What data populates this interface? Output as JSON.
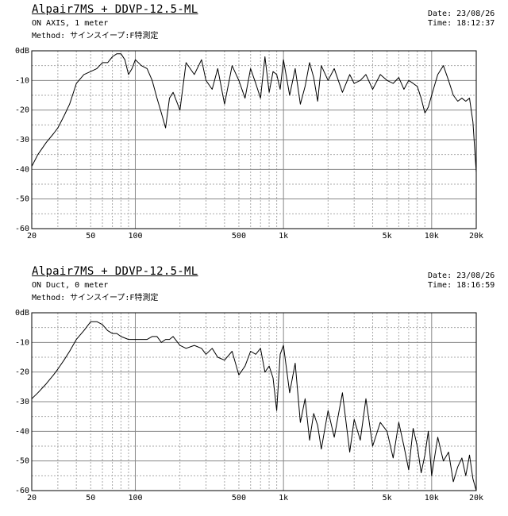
{
  "chart_data": [
    {
      "type": "line",
      "title": "Alpair7MS + DDVP-12.5-ML",
      "condition": "ON AXIS, 1 meter",
      "method_label": "Method",
      "method": "サインスイープ:F特測定",
      "date": "23/08/26",
      "time": "18:12:37",
      "xscale": "log",
      "xlim": [
        20,
        20000
      ],
      "ylim": [
        -60,
        0
      ],
      "grid": true,
      "x_ticks": [
        20,
        50,
        100,
        500,
        1000,
        5000,
        10000,
        20000
      ],
      "x_tick_labels": [
        "20",
        "50",
        "100",
        "500",
        "1k",
        "5k",
        "10k",
        "20k"
      ],
      "y_ticks": [
        0,
        -10,
        -20,
        -30,
        -40,
        -50,
        -60
      ],
      "y_tick_labels": [
        "0dB",
        "-10",
        "-20",
        "-30",
        "-40",
        "-50",
        "-60"
      ],
      "series": [
        {
          "x": [
            20,
            22,
            25,
            28,
            30,
            33,
            36,
            40,
            45,
            50,
            55,
            60,
            65,
            70,
            75,
            80,
            85,
            90,
            95,
            100,
            110,
            120,
            130,
            140,
            150,
            160,
            170,
            180,
            200,
            220,
            250,
            280,
            300,
            330,
            360,
            400,
            450,
            500,
            550,
            600,
            650,
            700,
            750,
            800,
            850,
            900,
            950,
            1000,
            1100,
            1200,
            1300,
            1400,
            1500,
            1600,
            1700,
            1800,
            2000,
            2200,
            2500,
            2800,
            3000,
            3300,
            3600,
            4000,
            4500,
            5000,
            5500,
            6000,
            6500,
            7000,
            7500,
            8000,
            8500,
            9000,
            9500,
            10000,
            11000,
            12000,
            13000,
            14000,
            15000,
            16000,
            17000,
            18000,
            19000,
            20000
          ],
          "y": [
            -39,
            -35,
            -31,
            -28,
            -26,
            -22,
            -18,
            -11,
            -8,
            -7,
            -6,
            -4,
            -4,
            -2,
            -1,
            -1,
            -3,
            -8,
            -6,
            -3,
            -5,
            -6,
            -10,
            -16,
            -21,
            -26,
            -16,
            -14,
            -20,
            -4,
            -8,
            -3,
            -10,
            -13,
            -6,
            -18,
            -5,
            -10,
            -16,
            -6,
            -11,
            -16,
            -2,
            -14,
            -7,
            -8,
            -13,
            -3,
            -15,
            -6,
            -18,
            -12,
            -4,
            -9,
            -17,
            -5,
            -10,
            -6,
            -14,
            -8,
            -11,
            -10,
            -8,
            -13,
            -8,
            -10,
            -11,
            -9,
            -13,
            -10,
            -11,
            -12,
            -16,
            -21,
            -19,
            -15,
            -8,
            -5,
            -10,
            -15,
            -17,
            -16,
            -17,
            -16,
            -24,
            -41
          ]
        }
      ]
    },
    {
      "type": "line",
      "title": "Alpair7MS + DDVP-12.5-ML",
      "condition": "ON Duct, 0 meter",
      "method_label": "Method",
      "method": "サインスイープ:F特測定",
      "date": "23/08/26",
      "time": "18:16:59",
      "xscale": "log",
      "xlim": [
        20,
        20000
      ],
      "ylim": [
        -60,
        0
      ],
      "grid": true,
      "x_ticks": [
        20,
        50,
        100,
        500,
        1000,
        5000,
        10000,
        20000
      ],
      "x_tick_labels": [
        "20",
        "50",
        "100",
        "500",
        "1k",
        "5k",
        "10k",
        "20k"
      ],
      "y_ticks": [
        0,
        -10,
        -20,
        -30,
        -40,
        -50,
        -60
      ],
      "y_tick_labels": [
        "0dB",
        "-10",
        "-20",
        "-30",
        "-40",
        "-50",
        "-60"
      ],
      "series": [
        {
          "x": [
            20,
            22,
            25,
            28,
            30,
            33,
            36,
            40,
            45,
            50,
            55,
            60,
            65,
            70,
            75,
            80,
            90,
            100,
            110,
            120,
            130,
            140,
            150,
            160,
            170,
            180,
            200,
            220,
            250,
            280,
            300,
            330,
            360,
            400,
            450,
            500,
            550,
            600,
            650,
            700,
            750,
            800,
            850,
            900,
            950,
            1000,
            1100,
            1200,
            1300,
            1400,
            1500,
            1600,
            1700,
            1800,
            2000,
            2200,
            2500,
            2800,
            3000,
            3300,
            3600,
            4000,
            4500,
            5000,
            5500,
            6000,
            6500,
            7000,
            7500,
            8000,
            8500,
            9000,
            9500,
            10000,
            11000,
            12000,
            13000,
            14000,
            15000,
            16000,
            17000,
            18000,
            19000,
            20000
          ],
          "y": [
            -29,
            -27,
            -24,
            -21,
            -19,
            -16,
            -13,
            -9,
            -6,
            -3,
            -3,
            -4,
            -6,
            -7,
            -7,
            -8,
            -9,
            -9,
            -9,
            -9,
            -8,
            -8,
            -10,
            -9,
            -9,
            -8,
            -11,
            -12,
            -11,
            -12,
            -14,
            -12,
            -15,
            -16,
            -13,
            -21,
            -18,
            -13,
            -14,
            -12,
            -20,
            -18,
            -22,
            -33,
            -14,
            -11,
            -27,
            -17,
            -37,
            -29,
            -43,
            -34,
            -38,
            -46,
            -33,
            -42,
            -27,
            -47,
            -36,
            -43,
            -29,
            -45,
            -37,
            -40,
            -49,
            -37,
            -45,
            -53,
            -39,
            -45,
            -54,
            -48,
            -40,
            -55,
            -42,
            -50,
            -47,
            -57,
            -52,
            -49,
            -55,
            -48,
            -56,
            -60
          ]
        }
      ]
    }
  ]
}
